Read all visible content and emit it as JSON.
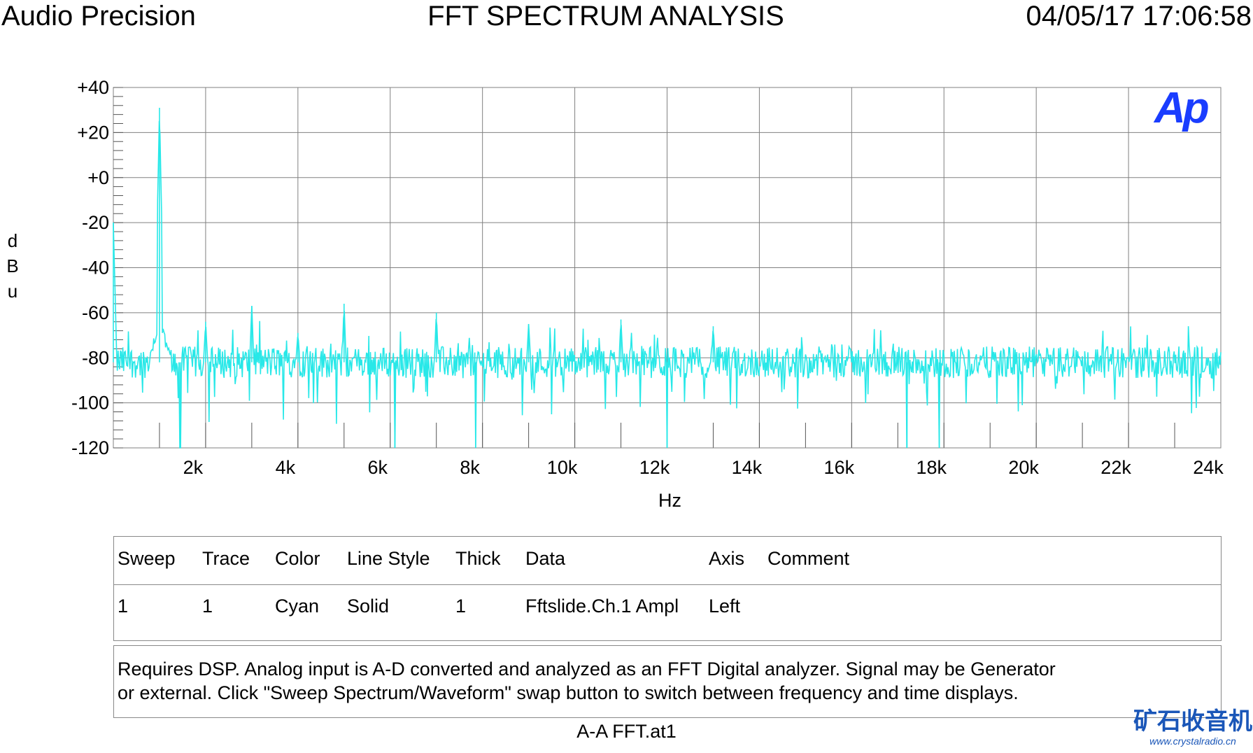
{
  "header": {
    "left": "Audio Precision",
    "center": "FFT SPECTRUM ANALYSIS",
    "right": "04/05/17 17:06:58"
  },
  "colors": {
    "trace": "#28e8e8",
    "grid": "#808080",
    "logo": "#1a3dff"
  },
  "logo": {
    "text": "Ap"
  },
  "chart_data": {
    "type": "line",
    "title": "FFT SPECTRUM ANALYSIS",
    "xlabel": "Hz",
    "ylabel_letters": [
      "d",
      "B",
      "u"
    ],
    "xlim": [
      0,
      24000
    ],
    "ylim": [
      -120,
      40
    ],
    "x_ticks": [
      2000,
      4000,
      6000,
      8000,
      10000,
      12000,
      14000,
      16000,
      18000,
      20000,
      22000,
      24000
    ],
    "x_tick_labels": [
      "2k",
      "4k",
      "6k",
      "8k",
      "10k",
      "12k",
      "14k",
      "16k",
      "18k",
      "20k",
      "22k",
      "24k"
    ],
    "y_ticks": [
      40,
      20,
      0,
      -20,
      -40,
      -60,
      -80,
      -100,
      -120
    ],
    "y_tick_labels": [
      "+40",
      "+20",
      "+0",
      "-20",
      "-40",
      "-60",
      "-80",
      "-100",
      "-120"
    ],
    "grid": true,
    "noise_floor": -82,
    "series": [
      {
        "name": "Fftslide.Ch.1 Ampl",
        "peaks": [
          {
            "x": 0,
            "y": -20
          },
          {
            "x": 1000,
            "y": 31
          },
          {
            "x": 2000,
            "y": -64
          },
          {
            "x": 3000,
            "y": -57
          },
          {
            "x": 4000,
            "y": -69
          },
          {
            "x": 5000,
            "y": -56
          },
          {
            "x": 7000,
            "y": -60
          },
          {
            "x": 9000,
            "y": -65
          },
          {
            "x": 11000,
            "y": -63
          },
          {
            "x": 13000,
            "y": -66
          }
        ],
        "dips": [
          {
            "x": 1450,
            "y": -120
          },
          {
            "x": 6100,
            "y": -120
          },
          {
            "x": 7850,
            "y": -120
          },
          {
            "x": 12000,
            "y": -120
          },
          {
            "x": 17200,
            "y": -120
          },
          {
            "x": 17900,
            "y": -120
          }
        ]
      }
    ]
  },
  "legend": {
    "headers": [
      "Sweep",
      "Trace",
      "Color",
      "Line Style",
      "Thick",
      "Data",
      "Axis",
      "Comment"
    ],
    "rows": [
      [
        "1",
        "1",
        "Cyan",
        "Solid",
        "1",
        "Fftslide.Ch.1 Ampl",
        "Left",
        ""
      ]
    ]
  },
  "comment": {
    "line1": "Requires DSP.  Analog input is A-D converted and analyzed as an FFT Digital analyzer.  Signal may be Generator",
    "line2": "or external.  Click \"Sweep Spectrum/Waveform\" swap button to switch between frequency and time displays."
  },
  "footer": {
    "filename": "A-A FFT.at1"
  },
  "watermark": {
    "cn": "矿石收音机",
    "url": "www.crystalradio.cn"
  }
}
